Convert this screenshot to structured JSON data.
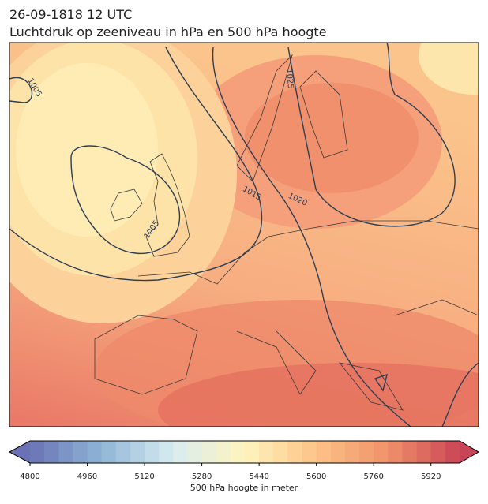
{
  "title": "26-09-1818 12 UTC",
  "subtitle": "Luchtdruk op zeeniveau in hPa en 500 hPa hoogte",
  "map": {
    "isobar_labels": [
      "1005",
      "1005",
      "1025",
      "1020",
      "1015"
    ]
  },
  "colorbar": {
    "label": "500 hPa hoogte in meter",
    "lim": [
      4800,
      6000
    ],
    "step": 40,
    "ticks": [
      4800,
      4960,
      5120,
      5280,
      5440,
      5600,
      5760,
      5920
    ],
    "colors": [
      "#6a72b5",
      "#8fb6d6",
      "#d8ecf1",
      "#fff4bd",
      "#fdc387",
      "#f0916a",
      "#c94456"
    ]
  }
}
